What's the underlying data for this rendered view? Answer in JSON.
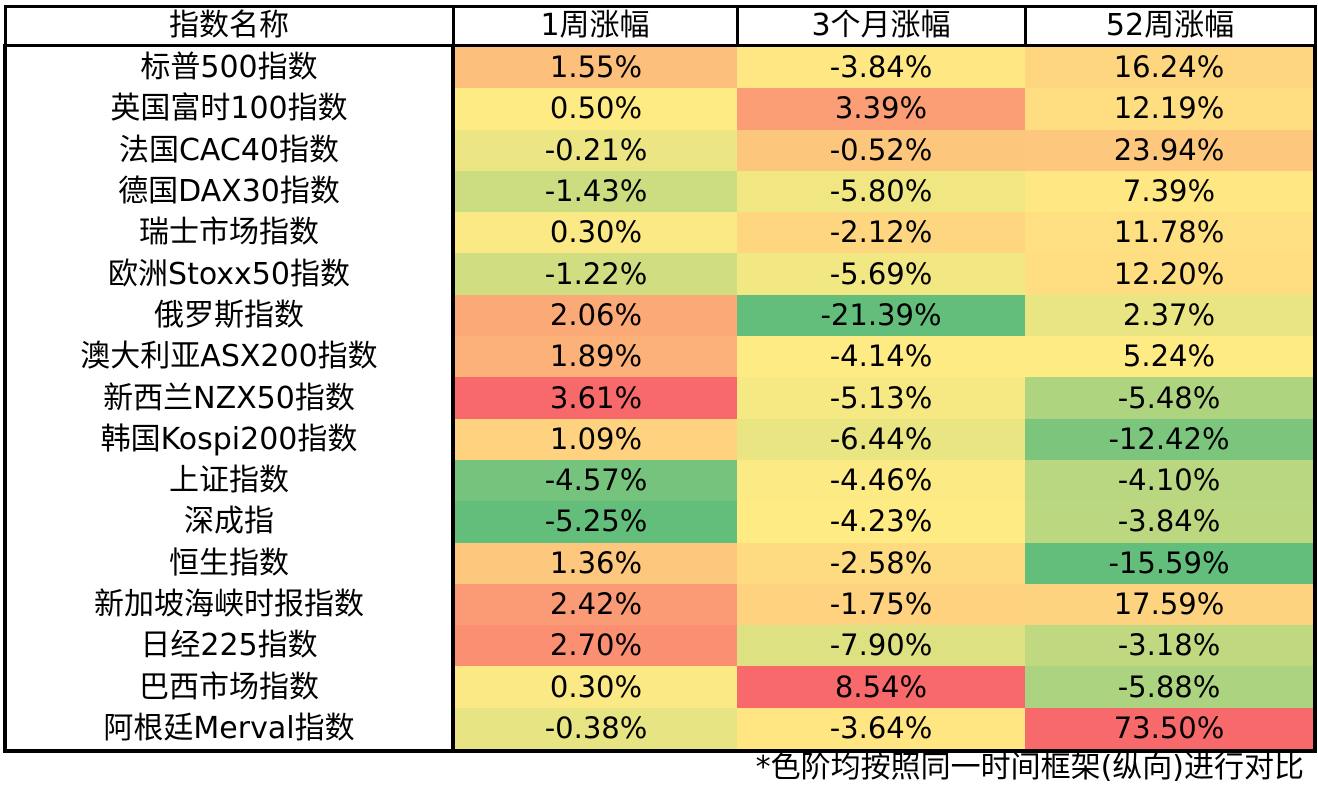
{
  "chart_data": {
    "type": "table",
    "columns": [
      "指数名称",
      "1周涨幅",
      "3个月涨幅",
      "52周涨幅"
    ],
    "rows": [
      {
        "name": "标普500指数",
        "values": [
          1.55,
          -3.84,
          16.24
        ],
        "labels": [
          "1.55%",
          "-3.84%",
          "16.24%"
        ]
      },
      {
        "name": "英国富时100指数",
        "values": [
          0.5,
          3.39,
          12.19
        ],
        "labels": [
          "0.50%",
          "3.39%",
          "12.19%"
        ]
      },
      {
        "name": "法国CAC40指数",
        "values": [
          -0.21,
          -0.52,
          23.94
        ],
        "labels": [
          "-0.21%",
          "-0.52%",
          "23.94%"
        ]
      },
      {
        "name": "德国DAX30指数",
        "values": [
          -1.43,
          -5.8,
          7.39
        ],
        "labels": [
          "-1.43%",
          "-5.80%",
          "7.39%"
        ]
      },
      {
        "name": "瑞士市场指数",
        "values": [
          0.3,
          -2.12,
          11.78
        ],
        "labels": [
          "0.30%",
          "-2.12%",
          "11.78%"
        ]
      },
      {
        "name": "欧洲Stoxx50指数",
        "values": [
          -1.22,
          -5.69,
          12.2
        ],
        "labels": [
          "-1.22%",
          "-5.69%",
          "12.20%"
        ]
      },
      {
        "name": "俄罗斯指数",
        "values": [
          2.06,
          -21.39,
          2.37
        ],
        "labels": [
          "2.06%",
          "-21.39%",
          "2.37%"
        ]
      },
      {
        "name": "澳大利亚ASX200指数",
        "values": [
          1.89,
          -4.14,
          5.24
        ],
        "labels": [
          "1.89%",
          "-4.14%",
          "5.24%"
        ]
      },
      {
        "name": "新西兰NZX50指数",
        "values": [
          3.61,
          -5.13,
          -5.48
        ],
        "labels": [
          "3.61%",
          "-5.13%",
          "-5.48%"
        ]
      },
      {
        "name": "韩国Kospi200指数",
        "values": [
          1.09,
          -6.44,
          -12.42
        ],
        "labels": [
          "1.09%",
          "-6.44%",
          "-12.42%"
        ]
      },
      {
        "name": "上证指数",
        "values": [
          -4.57,
          -4.46,
          -4.1
        ],
        "labels": [
          "-4.57%",
          "-4.46%",
          "-4.10%"
        ]
      },
      {
        "name": "深成指",
        "values": [
          -5.25,
          -4.23,
          -3.84
        ],
        "labels": [
          "-5.25%",
          "-4.23%",
          "-3.84%"
        ]
      },
      {
        "name": "恒生指数",
        "values": [
          1.36,
          -2.58,
          -15.59
        ],
        "labels": [
          "1.36%",
          "-2.58%",
          "-15.59%"
        ]
      },
      {
        "name": "新加坡海峡时报指数",
        "values": [
          2.42,
          -1.75,
          17.59
        ],
        "labels": [
          "2.42%",
          "-1.75%",
          "17.59%"
        ]
      },
      {
        "name": "日经225指数",
        "values": [
          2.7,
          -7.9,
          -3.18
        ],
        "labels": [
          "2.70%",
          "-7.90%",
          "-3.18%"
        ]
      },
      {
        "name": "巴西市场指数",
        "values": [
          0.3,
          8.54,
          -5.88
        ],
        "labels": [
          "0.30%",
          "8.54%",
          "-5.88%"
        ]
      },
      {
        "name": "阿根廷Merval指数",
        "values": [
          -0.38,
          -3.64,
          73.5
        ],
        "labels": [
          "-0.38%",
          "-3.64%",
          "73.50%"
        ]
      }
    ],
    "color_scale": {
      "low": "#63be7b",
      "mid": "#ffeb84",
      "high": "#f8696b",
      "direction": "per-column"
    }
  },
  "footnote": "*色阶均按照同一时间框架(纵向)进行对比"
}
